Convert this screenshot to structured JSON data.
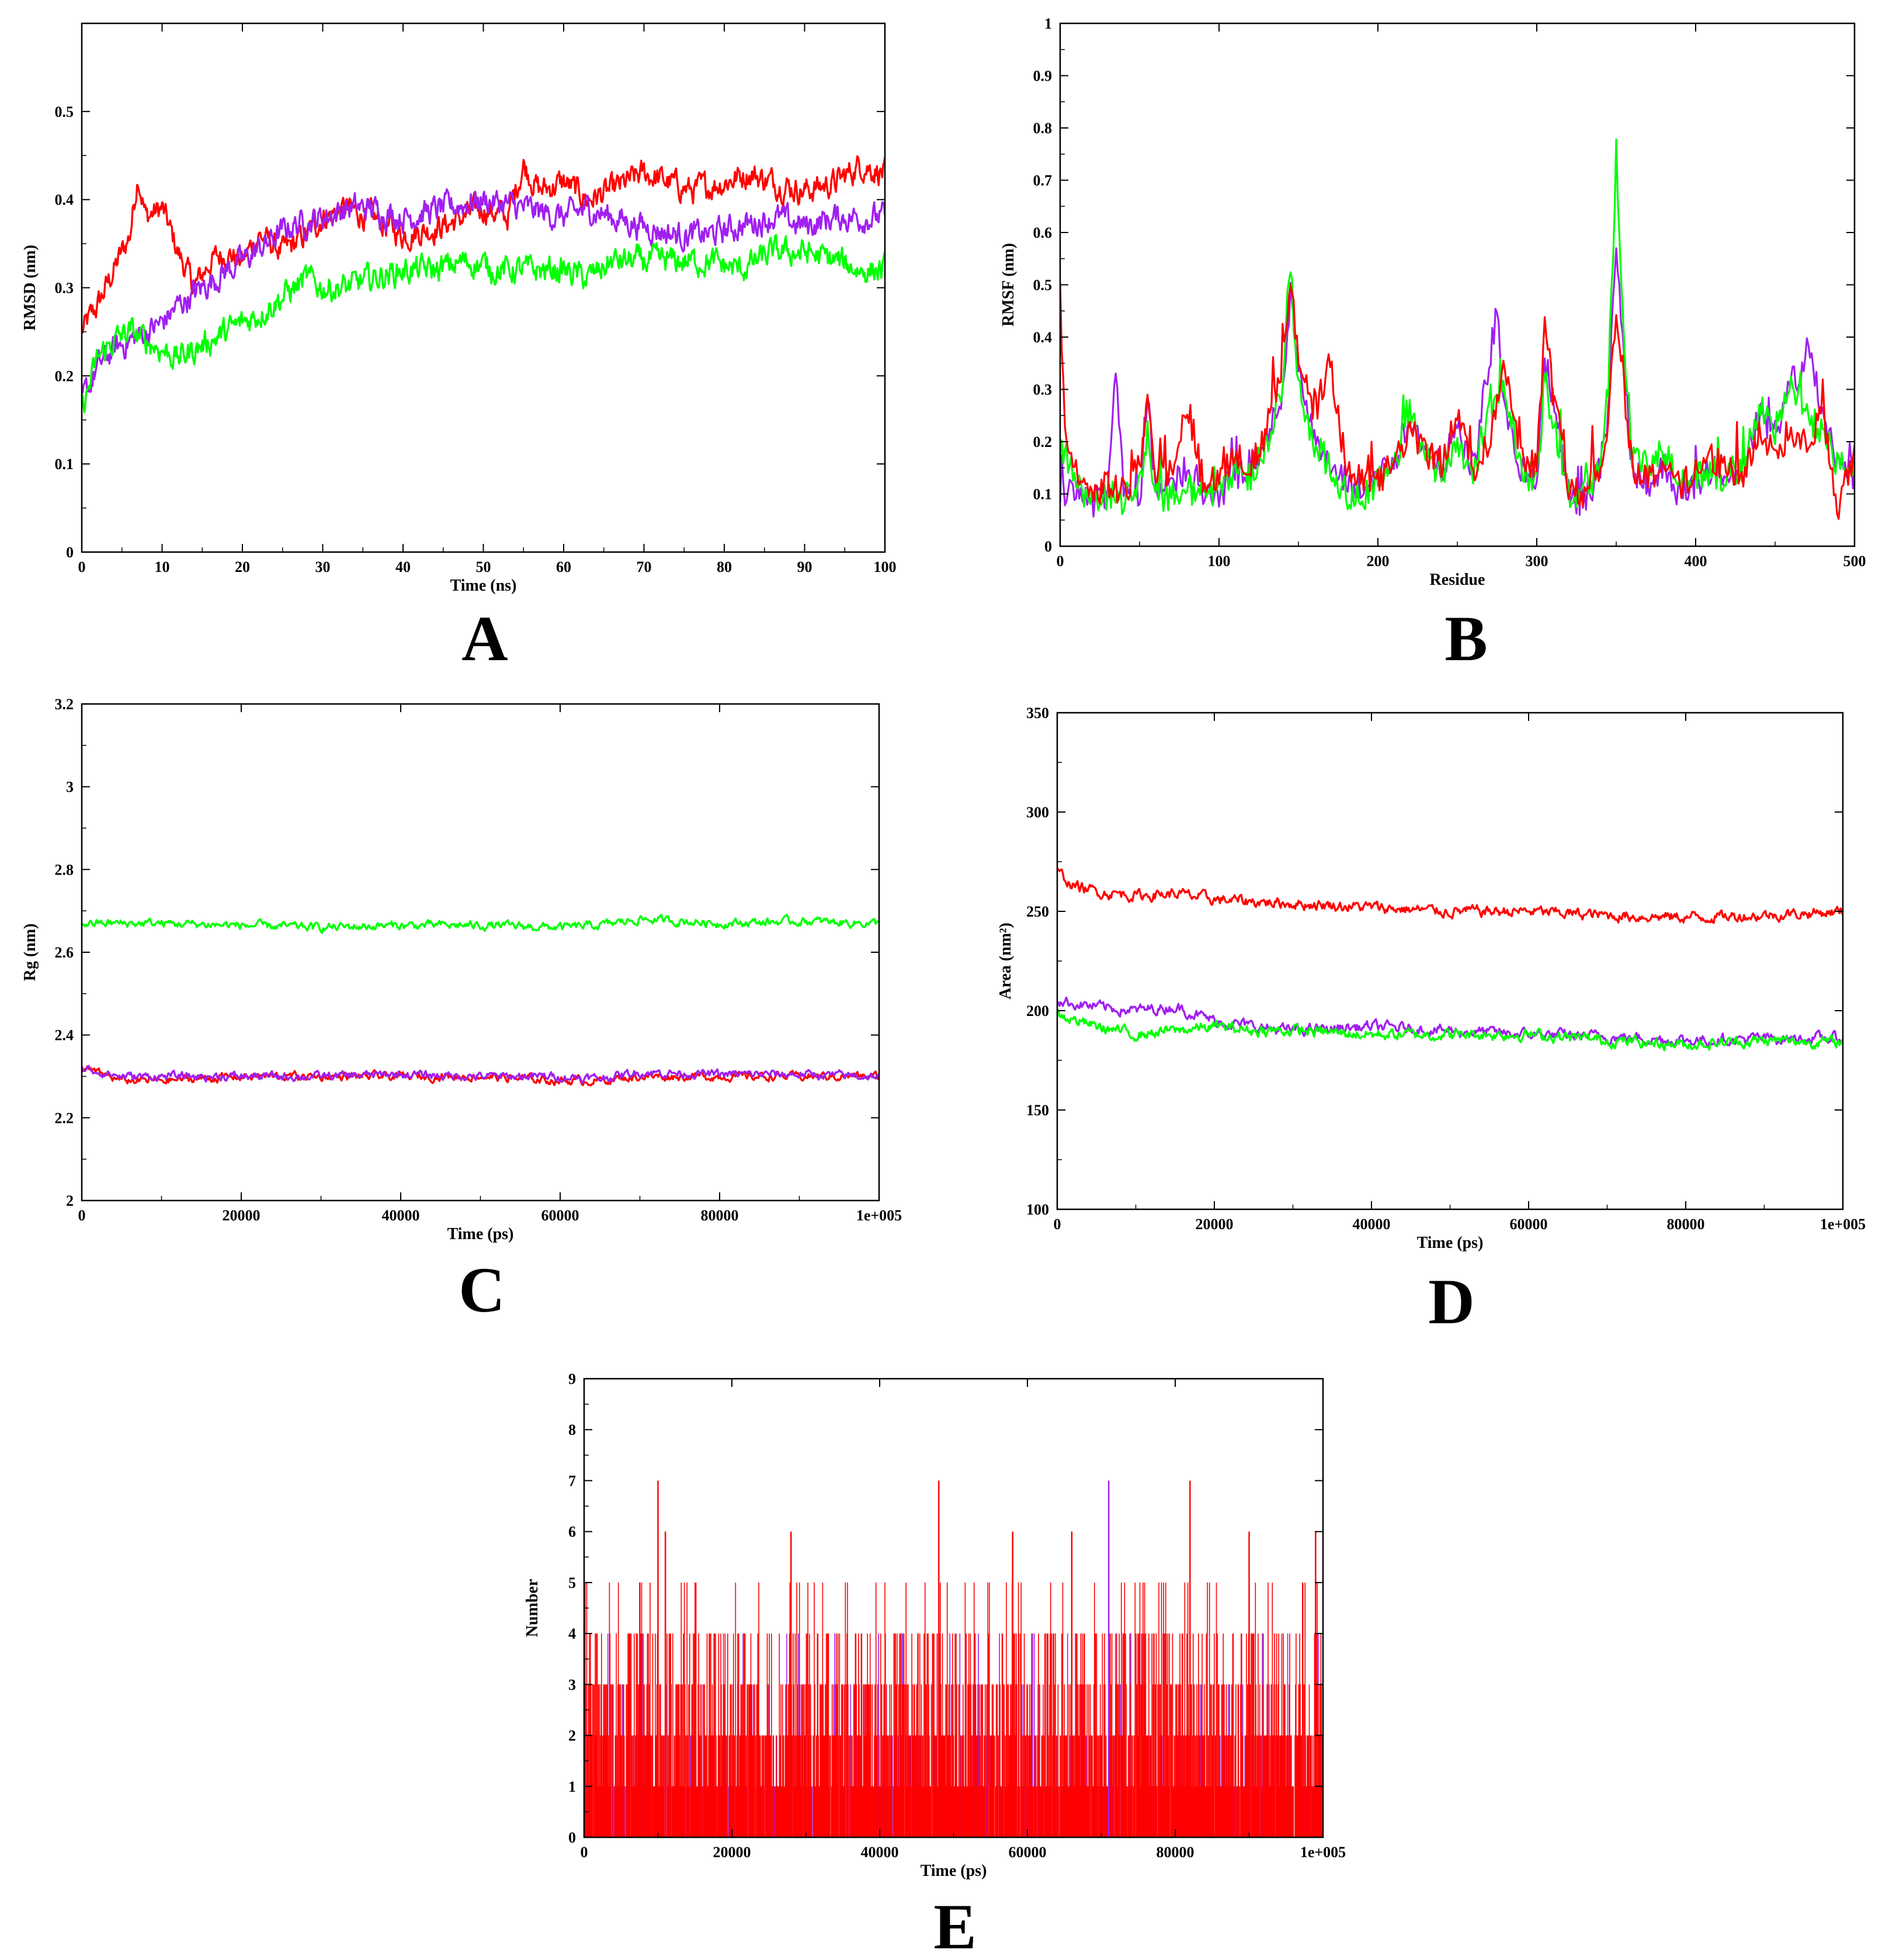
{
  "chart_data": [
    {
      "panel": "A",
      "type": "line",
      "xlabel": "Time (ns)",
      "ylabel": "RMSD (nm)",
      "xlim": [
        0,
        100
      ],
      "ylim": [
        0,
        0.6
      ],
      "xticks": [
        0,
        10,
        20,
        30,
        40,
        50,
        60,
        70,
        80,
        90,
        100
      ],
      "yticks": [
        0,
        0.1,
        0.2,
        0.3,
        0.4,
        0.5
      ],
      "series": [
        {
          "name": "red",
          "color": "#ff0000",
          "x": [
            0,
            2,
            4,
            6,
            7,
            8,
            10,
            12,
            14,
            16,
            18,
            20,
            22,
            25,
            28,
            30,
            33,
            36,
            40,
            45,
            50,
            53,
            55,
            57,
            60,
            63,
            66,
            70,
            73,
            76,
            80,
            83,
            86,
            90,
            94,
            97,
            100
          ],
          "y": [
            0.25,
            0.28,
            0.32,
            0.36,
            0.43,
            0.38,
            0.39,
            0.34,
            0.3,
            0.33,
            0.34,
            0.33,
            0.36,
            0.34,
            0.36,
            0.38,
            0.39,
            0.38,
            0.36,
            0.37,
            0.39,
            0.38,
            0.44,
            0.41,
            0.42,
            0.4,
            0.41,
            0.43,
            0.42,
            0.41,
            0.42,
            0.43,
            0.42,
            0.41,
            0.42,
            0.44,
            0.43
          ]
        },
        {
          "name": "purple",
          "color": "#a020f0",
          "x": [
            0,
            2,
            4,
            6,
            8,
            10,
            12,
            15,
            18,
            20,
            23,
            26,
            30,
            33,
            36,
            40,
            45,
            50,
            55,
            60,
            63,
            66,
            70,
            74,
            78,
            82,
            86,
            90,
            94,
            97,
            100
          ],
          "y": [
            0.17,
            0.21,
            0.23,
            0.24,
            0.25,
            0.26,
            0.28,
            0.3,
            0.32,
            0.33,
            0.35,
            0.37,
            0.38,
            0.39,
            0.39,
            0.38,
            0.39,
            0.4,
            0.39,
            0.38,
            0.39,
            0.38,
            0.37,
            0.36,
            0.36,
            0.37,
            0.38,
            0.37,
            0.38,
            0.38,
            0.38
          ]
        },
        {
          "name": "green",
          "color": "#00ff00",
          "x": [
            0,
            2,
            4,
            6,
            8,
            10,
            12,
            14,
            16,
            18,
            20,
            22,
            25,
            28,
            30,
            33,
            36,
            40,
            44,
            48,
            52,
            56,
            60,
            63,
            66,
            70,
            74,
            78,
            82,
            86,
            90,
            94,
            97,
            100
          ],
          "y": [
            0.16,
            0.22,
            0.24,
            0.25,
            0.24,
            0.23,
            0.22,
            0.23,
            0.24,
            0.25,
            0.26,
            0.27,
            0.29,
            0.31,
            0.3,
            0.3,
            0.31,
            0.32,
            0.32,
            0.33,
            0.32,
            0.32,
            0.32,
            0.31,
            0.33,
            0.33,
            0.33,
            0.33,
            0.32,
            0.34,
            0.34,
            0.33,
            0.32,
            0.32
          ]
        }
      ]
    },
    {
      "panel": "B",
      "type": "line",
      "xlabel": "Residue",
      "ylabel": "RMSF (nm)",
      "xlim": [
        0,
        500
      ],
      "ylim": [
        0,
        1
      ],
      "xticks": [
        0,
        100,
        200,
        300,
        400,
        500
      ],
      "yticks": [
        0,
        0.1,
        0.2,
        0.3,
        0.4,
        0.5,
        0.6,
        0.7,
        0.8,
        0.9,
        1
      ],
      "series": [
        {
          "name": "purple",
          "color": "#a020f0",
          "x": [
            0,
            10,
            20,
            30,
            35,
            40,
            50,
            55,
            60,
            70,
            80,
            90,
            100,
            110,
            120,
            130,
            140,
            145,
            150,
            160,
            170,
            180,
            190,
            200,
            210,
            220,
            230,
            240,
            250,
            260,
            270,
            275,
            280,
            290,
            300,
            305,
            310,
            320,
            330,
            340,
            345,
            350,
            355,
            360,
            370,
            380,
            390,
            400,
            410,
            420,
            430,
            440,
            450,
            460,
            465,
            470,
            480,
            490,
            500
          ],
          "y": [
            0.1,
            0.12,
            0.08,
            0.1,
            0.34,
            0.12,
            0.08,
            0.28,
            0.1,
            0.12,
            0.15,
            0.09,
            0.1,
            0.13,
            0.15,
            0.2,
            0.3,
            0.48,
            0.35,
            0.2,
            0.15,
            0.12,
            0.1,
            0.14,
            0.16,
            0.25,
            0.18,
            0.15,
            0.22,
            0.15,
            0.35,
            0.45,
            0.25,
            0.15,
            0.12,
            0.35,
            0.28,
            0.1,
            0.08,
            0.15,
            0.25,
            0.6,
            0.35,
            0.15,
            0.12,
            0.15,
            0.1,
            0.12,
            0.15,
            0.12,
            0.14,
            0.25,
            0.2,
            0.35,
            0.3,
            0.4,
            0.25,
            0.15,
            0.12
          ]
        },
        {
          "name": "green",
          "color": "#00ff00",
          "x": [
            0,
            10,
            20,
            30,
            40,
            50,
            55,
            60,
            70,
            80,
            90,
            100,
            110,
            120,
            130,
            140,
            145,
            150,
            160,
            170,
            180,
            190,
            200,
            210,
            220,
            230,
            240,
            250,
            260,
            270,
            280,
            290,
            300,
            305,
            310,
            320,
            330,
            340,
            345,
            350,
            355,
            360,
            370,
            380,
            390,
            400,
            410,
            420,
            430,
            440,
            450,
            460,
            470,
            480,
            490,
            500
          ],
          "y": [
            0.2,
            0.12,
            0.08,
            0.1,
            0.09,
            0.12,
            0.22,
            0.1,
            0.09,
            0.11,
            0.1,
            0.11,
            0.15,
            0.13,
            0.2,
            0.3,
            0.53,
            0.3,
            0.2,
            0.15,
            0.1,
            0.09,
            0.13,
            0.15,
            0.25,
            0.17,
            0.14,
            0.2,
            0.14,
            0.25,
            0.3,
            0.15,
            0.12,
            0.32,
            0.24,
            0.1,
            0.1,
            0.15,
            0.3,
            0.76,
            0.4,
            0.17,
            0.15,
            0.18,
            0.12,
            0.13,
            0.14,
            0.13,
            0.14,
            0.28,
            0.22,
            0.3,
            0.25,
            0.22,
            0.15,
            0.16
          ]
        },
        {
          "name": "red",
          "color": "#ff0000",
          "x": [
            0,
            3,
            10,
            20,
            30,
            40,
            50,
            55,
            60,
            70,
            80,
            90,
            100,
            110,
            120,
            130,
            140,
            145,
            150,
            160,
            170,
            180,
            190,
            200,
            210,
            220,
            230,
            240,
            250,
            260,
            270,
            280,
            290,
            300,
            305,
            310,
            320,
            330,
            340,
            345,
            350,
            355,
            360,
            370,
            380,
            390,
            400,
            410,
            420,
            430,
            440,
            450,
            460,
            470,
            480,
            490,
            500
          ],
          "y": [
            0.5,
            0.2,
            0.14,
            0.1,
            0.12,
            0.1,
            0.15,
            0.3,
            0.12,
            0.15,
            0.28,
            0.12,
            0.14,
            0.18,
            0.15,
            0.22,
            0.35,
            0.52,
            0.35,
            0.25,
            0.35,
            0.15,
            0.12,
            0.12,
            0.16,
            0.22,
            0.18,
            0.16,
            0.25,
            0.15,
            0.2,
            0.35,
            0.18,
            0.15,
            0.43,
            0.3,
            0.12,
            0.1,
            0.15,
            0.25,
            0.45,
            0.3,
            0.15,
            0.13,
            0.16,
            0.11,
            0.15,
            0.17,
            0.15,
            0.12,
            0.22,
            0.18,
            0.22,
            0.2,
            0.25,
            0.07,
            0.17
          ]
        }
      ]
    },
    {
      "panel": "C",
      "type": "line",
      "xlabel": "Time (ps)",
      "ylabel": "Rg (nm)",
      "xlim": [
        0,
        100000
      ],
      "ylim": [
        2,
        3.2
      ],
      "xticks": [
        0,
        20000,
        40000,
        60000,
        80000,
        100000
      ],
      "xtick_labels": [
        "0",
        "20000",
        "40000",
        "60000",
        "80000",
        "1e+005"
      ],
      "yticks": [
        2,
        2.2,
        2.4,
        2.6,
        2.8,
        3,
        3.2
      ],
      "series": [
        {
          "name": "green",
          "color": "#00ff00",
          "x": [
            0,
            10000,
            20000,
            30000,
            40000,
            50000,
            60000,
            65000,
            70000,
            80000,
            90000,
            100000
          ],
          "y": [
            2.67,
            2.67,
            2.665,
            2.66,
            2.665,
            2.665,
            2.66,
            2.665,
            2.68,
            2.67,
            2.675,
            2.67
          ]
        },
        {
          "name": "red",
          "color": "#ff0000",
          "x": [
            0,
            5000,
            10000,
            20000,
            30000,
            40000,
            50000,
            60000,
            65000,
            70000,
            80000,
            90000,
            100000
          ],
          "y": [
            2.32,
            2.29,
            2.29,
            2.3,
            2.3,
            2.3,
            2.3,
            2.29,
            2.29,
            2.3,
            2.3,
            2.3,
            2.3
          ]
        },
        {
          "name": "purple",
          "color": "#a020f0",
          "x": [
            0,
            5000,
            10000,
            20000,
            30000,
            40000,
            50000,
            60000,
            65000,
            70000,
            80000,
            90000,
            100000
          ],
          "y": [
            2.32,
            2.3,
            2.3,
            2.3,
            2.3,
            2.305,
            2.3,
            2.3,
            2.295,
            2.31,
            2.305,
            2.305,
            2.3
          ]
        }
      ]
    },
    {
      "panel": "D",
      "type": "line",
      "xlabel": "Time (ps)",
      "ylabel": "Area (nm²)",
      "xlim": [
        0,
        100000
      ],
      "ylim": [
        100,
        350
      ],
      "xticks": [
        0,
        20000,
        40000,
        60000,
        80000,
        100000
      ],
      "xtick_labels": [
        "0",
        "20000",
        "40000",
        "60000",
        "80000",
        "1e+005"
      ],
      "yticks": [
        100,
        150,
        200,
        250,
        300,
        350
      ],
      "series": [
        {
          "name": "red",
          "color": "#ff0000",
          "x": [
            0,
            2000,
            5000,
            10000,
            15000,
            20000,
            30000,
            40000,
            50000,
            60000,
            70000,
            80000,
            90000,
            100000
          ],
          "y": [
            270,
            263,
            260,
            258,
            259,
            256,
            254,
            252,
            250,
            250,
            248,
            247,
            248,
            250
          ]
        },
        {
          "name": "purple",
          "color": "#a020f0",
          "x": [
            0,
            5000,
            10000,
            15000,
            20000,
            25000,
            30000,
            40000,
            50000,
            60000,
            70000,
            80000,
            90000,
            100000
          ],
          "y": [
            205,
            202,
            200,
            202,
            195,
            192,
            190,
            192,
            190,
            188,
            187,
            185,
            186,
            186
          ]
        },
        {
          "name": "green",
          "color": "#00ff00",
          "x": [
            0,
            5000,
            10000,
            15000,
            20000,
            25000,
            30000,
            40000,
            50000,
            60000,
            70000,
            80000,
            90000,
            100000
          ],
          "y": [
            198,
            192,
            188,
            190,
            192,
            190,
            190,
            188,
            188,
            188,
            185,
            183,
            185,
            184
          ]
        }
      ]
    },
    {
      "panel": "E",
      "type": "step",
      "xlabel": "Time (ps)",
      "ylabel": "Number",
      "xlim": [
        0,
        100000
      ],
      "ylim": [
        0,
        9
      ],
      "xticks": [
        0,
        20000,
        40000,
        60000,
        80000,
        100000
      ],
      "xtick_labels": [
        "0",
        "20000",
        "40000",
        "60000",
        "80000",
        "1e+005"
      ],
      "yticks": [
        0,
        1,
        2,
        3,
        4,
        5,
        6,
        7,
        8,
        9
      ],
      "notes": "Dense hydrogen-bond count traces; purple values mostly 0-1 (max 7 near 71000 ps), red values mostly 1-4 with peaks of 7 near 10000, 48000 and 82000 ps.",
      "series": [
        {
          "name": "purple",
          "color": "#a020f0",
          "range": [
            0,
            7
          ]
        },
        {
          "name": "red",
          "color": "#ff0000",
          "range": [
            0,
            7
          ]
        }
      ]
    }
  ],
  "panel_labels": [
    "A",
    "B",
    "C",
    "D",
    "E"
  ]
}
